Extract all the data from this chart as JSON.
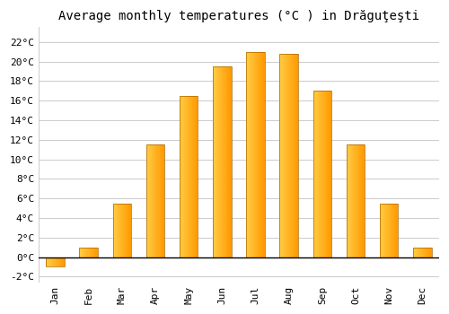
{
  "title": "Average monthly temperatures (°C ) in Drăguţeşti",
  "months": [
    "Jan",
    "Feb",
    "Mar",
    "Apr",
    "May",
    "Jun",
    "Jul",
    "Aug",
    "Sep",
    "Oct",
    "Nov",
    "Dec"
  ],
  "values": [
    -1.0,
    1.0,
    5.5,
    11.5,
    16.5,
    19.5,
    21.0,
    20.8,
    17.0,
    11.5,
    5.5,
    1.0
  ],
  "bar_color_left": "#FFCC44",
  "bar_color_right": "#FF9900",
  "bar_edge_color": "#AA6600",
  "ylim": [
    -2.5,
    23.5
  ],
  "yticks": [
    -2,
    0,
    2,
    4,
    6,
    8,
    10,
    12,
    14,
    16,
    18,
    20,
    22
  ],
  "ytick_labels": [
    "-2°C",
    "0°C",
    "2°C",
    "4°C",
    "6°C",
    "8°C",
    "10°C",
    "12°C",
    "14°C",
    "16°C",
    "18°C",
    "20°C",
    "22°C"
  ],
  "background_color": "#ffffff",
  "grid_color": "#cccccc",
  "title_fontsize": 10,
  "tick_fontsize": 8,
  "font_family": "monospace",
  "bar_width": 0.55,
  "n_gradient_steps": 50
}
